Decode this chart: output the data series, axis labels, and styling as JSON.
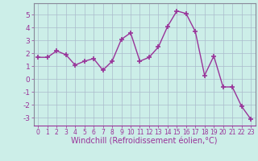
{
  "x": [
    0,
    1,
    2,
    3,
    4,
    5,
    6,
    7,
    8,
    9,
    10,
    11,
    12,
    13,
    14,
    15,
    16,
    17,
    18,
    19,
    20,
    21,
    22,
    23
  ],
  "y": [
    1.7,
    1.7,
    2.2,
    1.9,
    1.1,
    1.4,
    1.6,
    0.7,
    1.4,
    3.1,
    3.6,
    1.4,
    1.7,
    2.5,
    4.1,
    5.3,
    5.1,
    3.7,
    0.3,
    1.8,
    -0.6,
    -0.6,
    -2.1,
    -3.1
  ],
  "line_color": "#993399",
  "marker": "+",
  "marker_size": 4,
  "linewidth": 1.0,
  "marker_linewidth": 1.2,
  "xlabel": "Windchill (Refroidissement éolien,°C)",
  "xlabel_fontsize": 7,
  "xlim": [
    -0.5,
    23.5
  ],
  "ylim": [
    -3.6,
    5.9
  ],
  "yticks": [
    -3,
    -2,
    -1,
    0,
    1,
    2,
    3,
    4,
    5
  ],
  "xticks": [
    0,
    1,
    2,
    3,
    4,
    5,
    6,
    7,
    8,
    9,
    10,
    11,
    12,
    13,
    14,
    15,
    16,
    17,
    18,
    19,
    20,
    21,
    22,
    23
  ],
  "bg_color": "#cceee8",
  "grid_color": "#aabbcc",
  "tick_color": "#993399",
  "spine_color": "#888899",
  "axis_bottom_color": "#993399"
}
